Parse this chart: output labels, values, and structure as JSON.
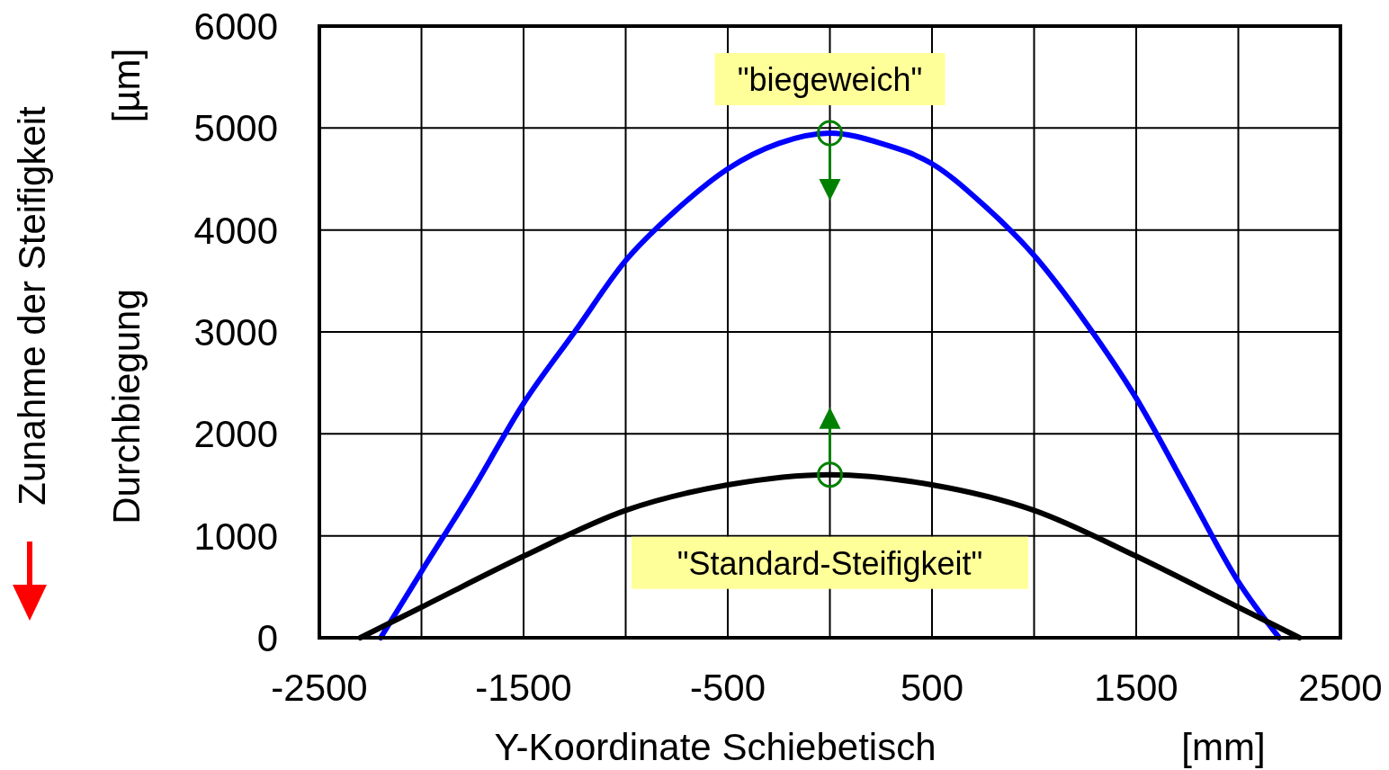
{
  "chart_data": {
    "type": "line",
    "xlabel": "Y-Koordinate Schiebetisch [mm]",
    "ylabel": "Durchbiegung [µm]",
    "xlim": [
      -2500,
      2500
    ],
    "ylim": [
      0,
      6000
    ],
    "xticks": [
      -2500,
      {
        "value": -2000,
        "label": null
      },
      -1500,
      {
        "value": -1000,
        "label": null
      },
      -500,
      {
        "value": 0,
        "label": null
      },
      500,
      {
        "value": 1000,
        "label": null
      },
      1500,
      {
        "value": 2000,
        "label": null
      },
      2500
    ],
    "yticks": [
      0,
      1000,
      2000,
      3000,
      4000,
      5000,
      6000
    ],
    "grid": true,
    "line_style": "solid",
    "series": [
      {
        "name": "\"biegeweich\"",
        "color": "#0000ff",
        "x": [
          -2200,
          -2000,
          -1750,
          -1500,
          -1250,
          -1000,
          -750,
          -500,
          -250,
          0,
          250,
          500,
          750,
          1000,
          1250,
          1500,
          1750,
          2000,
          2200
        ],
        "values": [
          0,
          650,
          1450,
          2300,
          3000,
          3700,
          4200,
          4600,
          4850,
          4950,
          4850,
          4650,
          4250,
          3750,
          3100,
          2350,
          1450,
          550,
          0
        ]
      },
      {
        "name": "\"Standard-Steifigkeit\"",
        "color": "#000000",
        "x": [
          -2300,
          -2000,
          -1500,
          -1000,
          -500,
          0,
          500,
          1000,
          1500,
          2000,
          2300
        ],
        "values": [
          0,
          300,
          800,
          1250,
          1500,
          1600,
          1500,
          1250,
          800,
          300,
          0
        ]
      },
      {
        "type": "scatter",
        "marker": "circle",
        "color": "#008000",
        "x": [
          0,
          0
        ],
        "values": [
          4950,
          1600
        ]
      }
    ],
    "annotations": [
      "Zunahme der Steifigkeit"
    ]
  }
}
